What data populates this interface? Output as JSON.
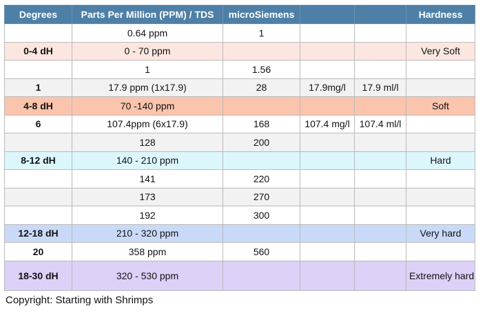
{
  "table": {
    "headers": [
      "Degrees",
      "Parts Per Million (PPM) / TDS",
      "microSiemens",
      "",
      "",
      "Hardness"
    ],
    "rows": [
      {
        "style": "white",
        "cells": [
          "",
          "0.64 ppm",
          "1",
          "",
          "",
          ""
        ]
      },
      {
        "style": "peach",
        "cells": [
          "0-4 dH",
          "0 - 70 ppm",
          "",
          "",
          "",
          "Very Soft"
        ]
      },
      {
        "style": "white",
        "cells": [
          "",
          "1",
          "1.56",
          "",
          "",
          ""
        ]
      },
      {
        "style": "grey",
        "cells": [
          "1",
          "17.9 ppm (1x17.9)",
          "28",
          "17.9mg/l",
          "17.9 ml/l",
          ""
        ]
      },
      {
        "style": "salmon",
        "cells": [
          "4-8 dH",
          "70 -140 ppm",
          "",
          "",
          "",
          "Soft"
        ]
      },
      {
        "style": "white",
        "cells": [
          "6",
          "107.4ppm (6x17.9)",
          "168",
          "107.4 mg/l",
          "107.4 ml/l",
          ""
        ]
      },
      {
        "style": "grey",
        "cells": [
          "",
          "128",
          "200",
          "",
          "",
          ""
        ]
      },
      {
        "style": "cyan",
        "cells": [
          "8-12 dH",
          "140 - 210 ppm",
          "",
          "",
          "",
          "Hard"
        ]
      },
      {
        "style": "white",
        "cells": [
          "",
          "141",
          "220",
          "",
          "",
          ""
        ]
      },
      {
        "style": "grey",
        "cells": [
          "",
          "173",
          "270",
          "",
          "",
          ""
        ]
      },
      {
        "style": "white",
        "cells": [
          "",
          "192",
          "300",
          "",
          "",
          ""
        ]
      },
      {
        "style": "blue",
        "cells": [
          "12-18 dH",
          "210 - 320 ppm",
          "",
          "",
          "",
          "Very hard"
        ]
      },
      {
        "style": "white",
        "cells": [
          "20",
          "358 ppm",
          "560",
          "",
          "",
          ""
        ]
      },
      {
        "style": "lavender",
        "cells": [
          "18-30 dH",
          "320 - 530 ppm",
          "",
          "",
          "",
          "Extremely hard"
        ]
      }
    ]
  },
  "colors": {
    "header": "#4e7fa6",
    "peach": "#fce7e0",
    "salmon": "#fbc4ad",
    "cyan": "#dcf7fc",
    "blue": "#c9daf8",
    "lavender": "#ddd1f8",
    "grey": "#f2f2f2"
  },
  "footer": {
    "copyright": "Copyright: Starting with Shrimps"
  }
}
